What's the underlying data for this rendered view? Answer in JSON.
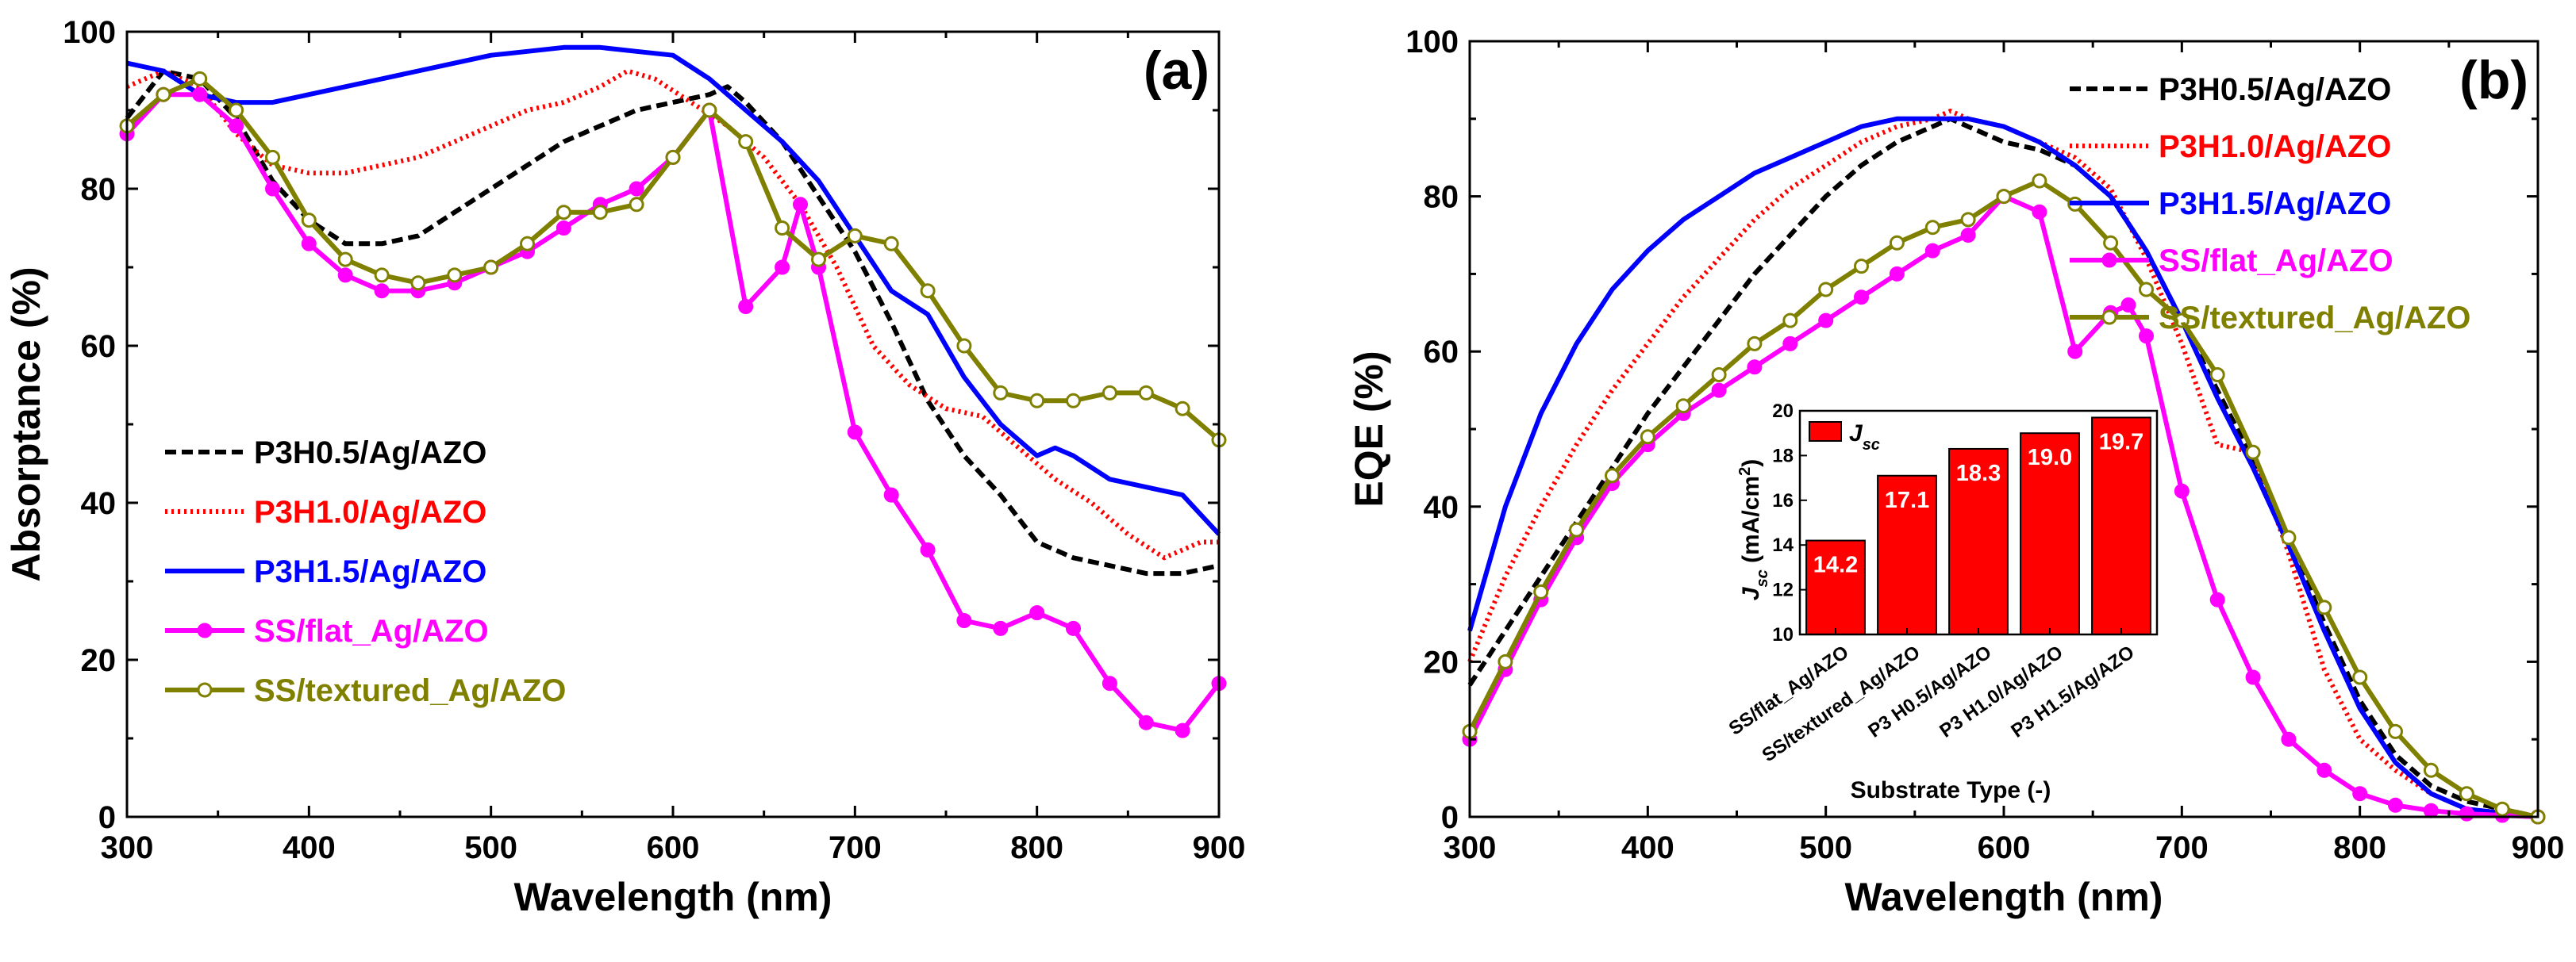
{
  "chart_data": [
    {
      "type": "line",
      "panel_label": "(a)",
      "xlabel": "Wavelength (nm)",
      "ylabel": "Absorptance (%)",
      "xlim": [
        300,
        900
      ],
      "ylim": [
        0,
        100
      ],
      "xticks": [
        "300",
        "400",
        "500",
        "600",
        "700",
        "800",
        "900"
      ],
      "yticks": [
        "0",
        "20",
        "40",
        "60",
        "80",
        "100"
      ],
      "legend_position": "center-left",
      "series": [
        {
          "name": "P3H0.5/Ag/AZO",
          "color": "#000000",
          "dash": "dash",
          "marker": "none",
          "x": [
            300,
            320,
            340,
            360,
            380,
            400,
            420,
            440,
            460,
            480,
            500,
            520,
            540,
            560,
            580,
            600,
            620,
            630,
            640,
            660,
            680,
            700,
            720,
            740,
            760,
            780,
            800,
            820,
            840,
            860,
            880,
            900
          ],
          "y": [
            89,
            95,
            94,
            89,
            81,
            76,
            73,
            73,
            74,
            77,
            80,
            83,
            86,
            88,
            90,
            91,
            92,
            93,
            91,
            86,
            79,
            72,
            63,
            53,
            46,
            41,
            35,
            33,
            32,
            31,
            31,
            32
          ]
        },
        {
          "name": "P3H1.0/Ag/AZO",
          "color": "#ff0000",
          "dash": "dot",
          "marker": "none",
          "x": [
            300,
            320,
            340,
            360,
            380,
            400,
            420,
            440,
            460,
            480,
            500,
            520,
            540,
            560,
            575,
            590,
            610,
            630,
            650,
            670,
            690,
            710,
            730,
            750,
            770,
            790,
            810,
            830,
            850,
            870,
            890,
            900
          ],
          "y": [
            93,
            95,
            93,
            87,
            83,
            82,
            82,
            83,
            84,
            86,
            88,
            90,
            91,
            93,
            95,
            94,
            91,
            88,
            84,
            78,
            70,
            60,
            55,
            52,
            51,
            47,
            43,
            40,
            36,
            33,
            35,
            35
          ]
        },
        {
          "name": "P3H1.5/Ag/AZO",
          "color": "#0000ff",
          "dash": "solid",
          "marker": "none",
          "x": [
            300,
            320,
            340,
            360,
            380,
            400,
            420,
            440,
            460,
            480,
            500,
            520,
            540,
            560,
            580,
            600,
            620,
            640,
            660,
            680,
            700,
            720,
            740,
            760,
            780,
            800,
            810,
            820,
            840,
            860,
            880,
            900
          ],
          "y": [
            96,
            95,
            92,
            91,
            91,
            92,
            93,
            94,
            95,
            96,
            97,
            97.5,
            98,
            98,
            97.5,
            97,
            94,
            90,
            86,
            81,
            74,
            67,
            64,
            56,
            50,
            46,
            47,
            46,
            43,
            42,
            41,
            36
          ]
        },
        {
          "name": "SS/flat_Ag/AZO",
          "color": "#ff00ff",
          "dash": "solid",
          "marker": "filled-circle",
          "x": [
            300,
            320,
            340,
            360,
            380,
            400,
            420,
            440,
            460,
            480,
            500,
            520,
            540,
            560,
            580,
            600,
            620,
            640,
            660,
            670,
            680,
            700,
            720,
            740,
            760,
            780,
            800,
            820,
            840,
            860,
            880,
            900
          ],
          "y": [
            87,
            92,
            92,
            88,
            80,
            73,
            69,
            67,
            67,
            68,
            70,
            72,
            75,
            78,
            80,
            84,
            90,
            65,
            70,
            78,
            70,
            49,
            41,
            34,
            25,
            24,
            26,
            24,
            17,
            12,
            11,
            17
          ]
        },
        {
          "name": "SS/textured_Ag/AZO",
          "color": "#808000",
          "dash": "solid",
          "marker": "open-circle",
          "x": [
            300,
            320,
            340,
            360,
            380,
            400,
            420,
            440,
            460,
            480,
            500,
            520,
            540,
            560,
            580,
            600,
            620,
            640,
            660,
            680,
            700,
            720,
            740,
            760,
            780,
            800,
            820,
            840,
            860,
            880,
            900
          ],
          "y": [
            88,
            92,
            94,
            90,
            84,
            76,
            71,
            69,
            68,
            69,
            70,
            73,
            77,
            77,
            78,
            84,
            90,
            86,
            75,
            71,
            74,
            73,
            67,
            60,
            54,
            53,
            53,
            54,
            54,
            52,
            48
          ]
        }
      ]
    },
    {
      "type": "line",
      "panel_label": "(b)",
      "xlabel": "Wavelength (nm)",
      "ylabel": "EQE  (%)",
      "xlim": [
        300,
        900
      ],
      "ylim": [
        0,
        100
      ],
      "xticks": [
        "300",
        "400",
        "500",
        "600",
        "700",
        "800",
        "900"
      ],
      "yticks": [
        "0",
        "20",
        "40",
        "60",
        "80",
        "100"
      ],
      "legend_position": "top-right",
      "series": [
        {
          "name": "P3H0.5/Ag/AZO",
          "color": "#000000",
          "dash": "dash",
          "marker": "none",
          "x": [
            300,
            320,
            340,
            360,
            380,
            400,
            420,
            440,
            460,
            480,
            500,
            520,
            540,
            560,
            570,
            580,
            600,
            620,
            640,
            660,
            680,
            700,
            720,
            740,
            760,
            780,
            800,
            820,
            840,
            860,
            880,
            900
          ],
          "y": [
            17,
            24,
            31,
            38,
            45,
            52,
            58,
            64,
            70,
            75,
            80,
            84,
            87,
            89,
            90,
            89,
            87,
            86,
            84,
            80,
            73,
            64,
            55,
            46,
            36,
            25,
            15,
            8,
            4,
            2,
            1,
            0
          ]
        },
        {
          "name": "P3H1.0/Ag/AZO",
          "color": "#ff0000",
          "dash": "dot",
          "marker": "none",
          "x": [
            300,
            320,
            340,
            360,
            380,
            400,
            420,
            440,
            460,
            480,
            500,
            520,
            540,
            560,
            570,
            580,
            600,
            620,
            640,
            660,
            680,
            700,
            720,
            740,
            760,
            780,
            800,
            820,
            840,
            860,
            880,
            900
          ],
          "y": [
            20,
            31,
            40,
            48,
            55,
            61,
            67,
            72,
            77,
            81,
            84,
            87,
            89,
            90,
            91,
            90,
            89,
            87,
            85,
            81,
            72,
            61,
            48,
            47,
            34,
            19,
            10,
            6,
            3,
            1,
            0.5,
            0
          ]
        },
        {
          "name": "P3H1.5/Ag/AZO",
          "color": "#0000ff",
          "dash": "solid",
          "marker": "none",
          "x": [
            300,
            320,
            340,
            360,
            380,
            400,
            420,
            440,
            460,
            480,
            500,
            520,
            540,
            560,
            580,
            600,
            620,
            640,
            660,
            680,
            700,
            720,
            740,
            760,
            780,
            800,
            820,
            840,
            860,
            880,
            900
          ],
          "y": [
            24,
            40,
            52,
            61,
            68,
            73,
            77,
            80,
            83,
            85,
            87,
            89,
            90,
            90,
            90,
            89,
            87,
            84,
            80,
            73,
            64,
            54,
            45,
            35,
            24,
            14,
            7,
            3,
            1,
            0.5,
            0
          ]
        },
        {
          "name": "SS/flat_Ag/AZO",
          "color": "#ff00ff",
          "dash": "solid",
          "marker": "filled-circle",
          "x": [
            300,
            320,
            340,
            360,
            380,
            400,
            420,
            440,
            460,
            480,
            500,
            520,
            540,
            560,
            580,
            600,
            620,
            640,
            660,
            670,
            680,
            700,
            720,
            740,
            760,
            780,
            800,
            820,
            840,
            860,
            880,
            900
          ],
          "y": [
            10,
            19,
            28,
            36,
            43,
            48,
            52,
            55,
            58,
            61,
            64,
            67,
            70,
            73,
            75,
            80,
            78,
            60,
            65,
            66,
            62,
            42,
            28,
            18,
            10,
            6,
            3,
            1.5,
            0.8,
            0.4,
            0.2,
            0
          ]
        },
        {
          "name": "SS/textured_Ag/AZO",
          "color": "#808000",
          "dash": "solid",
          "marker": "open-circle",
          "x": [
            300,
            320,
            340,
            360,
            380,
            400,
            420,
            440,
            460,
            480,
            500,
            520,
            540,
            560,
            580,
            600,
            620,
            640,
            660,
            680,
            700,
            720,
            740,
            760,
            780,
            800,
            820,
            840,
            860,
            880,
            900
          ],
          "y": [
            11,
            20,
            29,
            37,
            44,
            49,
            53,
            57,
            61,
            64,
            68,
            71,
            74,
            76,
            77,
            80,
            82,
            79,
            74,
            68,
            64,
            57,
            47,
            36,
            27,
            18,
            11,
            6,
            3,
            1,
            0
          ]
        }
      ]
    },
    {
      "type": "bar",
      "role": "inset",
      "xlabel": "Substrate Type (-)",
      "ylabel_main": "J",
      "ylabel_sub": "sc",
      "ylabel_rest": "  (mA/cm",
      "ylabel_sup": "2",
      "ylabel_close": ")",
      "legend_main": "J",
      "legend_sub": "sc",
      "ylim": [
        10,
        20
      ],
      "yticks": [
        "10",
        "12",
        "14",
        "16",
        "18",
        "20"
      ],
      "bar_color": "#ff0000",
      "categories": [
        "SS/flat_Ag/AZO",
        "SS/textured_Ag/AZO",
        "P3 H0.5/Ag/AZO",
        "P3 H1.0/Ag/AZO",
        "P3 H1.5/Ag/AZO"
      ],
      "values": [
        14.2,
        17.1,
        18.3,
        19.0,
        19.7
      ],
      "value_labels": [
        "14.2",
        "17.1",
        "18.3",
        "19.0",
        "19.7"
      ]
    }
  ]
}
